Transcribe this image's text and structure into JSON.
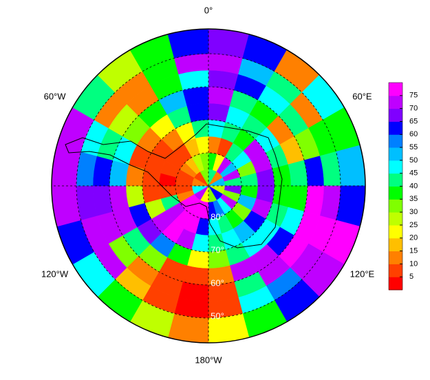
{
  "chart_data": {
    "type": "polar_heatmap",
    "lat_edges": [
      -90,
      -85,
      -80,
      -75,
      -70,
      -65,
      -60,
      -55,
      -50,
      -42.5
    ],
    "lon_edges": [
      0,
      15,
      30,
      45,
      60,
      75,
      90,
      105,
      120,
      135,
      150,
      165,
      180,
      195,
      210,
      225,
      240,
      255,
      270,
      285,
      300,
      315,
      330,
      345,
      360
    ],
    "values": [
      [
        40,
        40,
        10,
        10,
        50,
        50,
        25,
        25,
        60,
        60,
        30,
        30,
        20,
        20,
        70,
        70,
        45,
        45,
        10,
        10,
        5,
        5,
        30,
        30
      ],
      [
        35,
        20,
        70,
        50,
        70,
        40,
        65,
        30,
        70,
        45,
        55,
        60,
        75,
        78,
        78,
        75,
        10,
        5,
        5,
        8,
        10,
        15,
        25,
        30
      ],
      [
        10,
        8,
        40,
        45,
        30,
        40,
        35,
        50,
        30,
        35,
        40,
        45,
        60,
        78,
        76,
        70,
        40,
        5,
        3,
        5,
        5,
        8,
        15,
        20
      ],
      [
        45,
        40,
        35,
        70,
        72,
        68,
        65,
        70,
        60,
        50,
        45,
        42,
        45,
        70,
        75,
        72,
        25,
        8,
        5,
        5,
        8,
        10,
        20,
        40
      ],
      [
        65,
        45,
        40,
        45,
        40,
        35,
        38,
        40,
        45,
        48,
        40,
        30,
        20,
        35,
        55,
        65,
        60,
        25,
        10,
        8,
        10,
        20,
        40,
        60
      ],
      [
        70,
        40,
        35,
        12,
        15,
        40,
        35,
        45,
        60,
        72,
        70,
        10,
        5,
        8,
        30,
        40,
        72,
        70,
        50,
        45,
        30,
        35,
        50,
        60
      ],
      [
        65,
        60,
        45,
        40,
        30,
        60,
        75,
        78,
        76,
        72,
        40,
        5,
        3,
        5,
        10,
        30,
        70,
        68,
        60,
        40,
        25,
        12,
        35,
        45
      ],
      [
        72,
        50,
        40,
        12,
        35,
        40,
        72,
        75,
        70,
        55,
        45,
        8,
        3,
        5,
        15,
        70,
        72,
        65,
        55,
        45,
        12,
        10,
        35,
        70
      ],
      [
        68,
        60,
        10,
        48,
        38,
        50,
        62,
        76,
        70,
        60,
        35,
        20,
        12,
        25,
        38,
        45,
        62,
        70,
        72,
        70,
        40,
        28,
        38,
        62
      ]
    ],
    "lat_ticks": [
      {
        "value": -80,
        "label": "80°"
      },
      {
        "value": -70,
        "label": "70°"
      },
      {
        "value": -60,
        "label": "60°"
      },
      {
        "value": -50,
        "label": "50°"
      }
    ],
    "lon_ticks": [
      {
        "value": 0,
        "label": "0°"
      },
      {
        "value": 60,
        "label": "60°E"
      },
      {
        "value": 120,
        "label": "120°E"
      },
      {
        "value": 180,
        "label": "180°W"
      },
      {
        "value": 240,
        "label": "120°W"
      },
      {
        "value": 300,
        "label": "60°W"
      }
    ],
    "meridians": [
      0,
      90,
      180,
      270
    ],
    "colors": [
      "#ff0000",
      "#ff4000",
      "#ff8000",
      "#ffbf00",
      "#ffff00",
      "#bfff00",
      "#80ff00",
      "#00ff00",
      "#00ff80",
      "#00ffff",
      "#00bfff",
      "#0080ff",
      "#0000ff",
      "#8000ff",
      "#bf00ff",
      "#ff00ff"
    ],
    "clim": [
      0,
      80
    ],
    "cticks": [
      5,
      10,
      15,
      20,
      25,
      30,
      35,
      40,
      45,
      50,
      55,
      60,
      65,
      70,
      75
    ]
  }
}
